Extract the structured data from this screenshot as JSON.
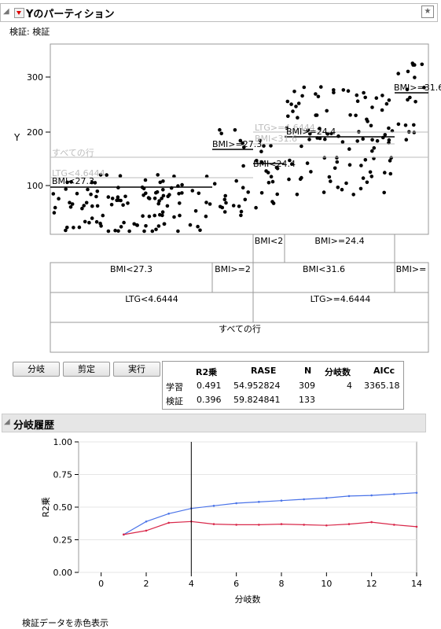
{
  "report": {
    "title": "Yのパーティション",
    "validation_label": "検証: 検証"
  },
  "partition_plot": {
    "y_axis_label": "Y",
    "y_ticks": [
      "300",
      "200",
      "100"
    ],
    "node_labels": [
      "BMI<27.3",
      "すべての行",
      "LTG<4.6444",
      "BMI>=27.3",
      "LTG>=4.6444",
      "BMI<31.6",
      "BMI<24.4",
      "BMI>=24.4",
      "BMI>=31.6"
    ],
    "tree_row1": [
      "BMI<2",
      "BMI>=24.4"
    ],
    "tree_row2": [
      "BMI<27.3",
      "BMI>=2",
      "BMI<31.6",
      "BMI>="
    ],
    "tree_row3": [
      "LTG<4.6444",
      "LTG>=4.6444"
    ],
    "tree_row4": [
      "すべての行"
    ]
  },
  "buttons": {
    "split": "分岐",
    "prune": "剪定",
    "go": "実行"
  },
  "stats": {
    "headers": [
      "R2乗",
      "RASE",
      "N",
      "分岐数",
      "AICc"
    ],
    "rows": [
      {
        "label": "学習",
        "r2": "0.491",
        "rase": "54.952824",
        "n": "309",
        "splits": "4",
        "aicc": "3365.18"
      },
      {
        "label": "検証",
        "r2": "0.396",
        "rase": "59.824841",
        "n": "133",
        "splits": "",
        "aicc": ""
      }
    ]
  },
  "history": {
    "title": "分岐履歴",
    "footer": "検証データを赤色表示"
  },
  "chart_data": {
    "type": "line",
    "x": [
      1,
      2,
      3,
      4,
      5,
      6,
      7,
      8,
      9,
      10,
      11,
      12,
      13,
      14
    ],
    "series": [
      {
        "name": "学習",
        "color": "#4a73e8",
        "values": [
          0.29,
          0.39,
          0.45,
          0.49,
          0.51,
          0.53,
          0.54,
          0.55,
          0.56,
          0.57,
          0.585,
          0.59,
          0.6,
          0.61
        ]
      },
      {
        "name": "検証",
        "color": "#d9284a",
        "values": [
          0.29,
          0.32,
          0.38,
          0.39,
          0.37,
          0.365,
          0.365,
          0.37,
          0.365,
          0.36,
          0.37,
          0.385,
          0.365,
          0.35
        ]
      }
    ],
    "xlabel": "分岐数",
    "ylabel": "R2乗",
    "xlim": [
      -1,
      14
    ],
    "ylim": [
      0,
      1
    ],
    "x_ticks": [
      "0",
      "2",
      "4",
      "6",
      "8",
      "10",
      "12",
      "14"
    ],
    "y_ticks": [
      "0.00",
      "0.25",
      "0.50",
      "0.75",
      "1.00"
    ],
    "vline_at": 4
  }
}
